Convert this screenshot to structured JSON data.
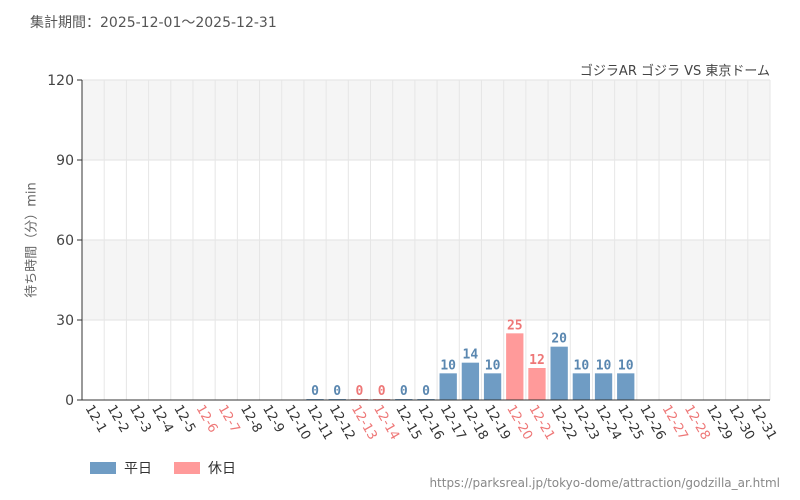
{
  "period_label": "集計期間：2025-12-01～2025-12-31",
  "attraction": "ゴジラAR ゴジラ VS 東京ドーム",
  "source_url": "https://parksreal.jp/tokyo-dome/attraction/godzilla_ar.html",
  "colors": {
    "weekday": "#6f9cc4",
    "holiday": "#ff9a9a",
    "holiday_text": "#ee7777",
    "weekday_text": "#5a87b0"
  },
  "chart_data": {
    "type": "bar",
    "ylabel": "待ち時間（分）min",
    "ylim": [
      0,
      120
    ],
    "yticks": [
      "0",
      "30",
      "60",
      "90",
      "120"
    ],
    "categories": [
      "12-1",
      "12-2",
      "12-3",
      "12-4",
      "12-5",
      "12-6",
      "12-7",
      "12-8",
      "12-9",
      "12-10",
      "12-11",
      "12-12",
      "12-13",
      "12-14",
      "12-15",
      "12-16",
      "12-17",
      "12-18",
      "12-19",
      "12-20",
      "12-21",
      "12-22",
      "12-23",
      "12-24",
      "12-25",
      "12-26",
      "12-27",
      "12-28",
      "12-29",
      "12-30",
      "12-31"
    ],
    "holiday": [
      false,
      false,
      false,
      false,
      false,
      true,
      true,
      false,
      false,
      false,
      false,
      false,
      true,
      true,
      false,
      false,
      false,
      false,
      false,
      true,
      true,
      false,
      false,
      false,
      false,
      false,
      true,
      true,
      false,
      false,
      false
    ],
    "values": [
      null,
      null,
      null,
      null,
      null,
      null,
      null,
      null,
      null,
      null,
      0,
      0,
      0,
      0,
      0,
      0,
      10,
      14,
      10,
      25,
      12,
      20,
      10,
      10,
      10,
      null,
      null,
      null,
      null,
      null,
      null
    ],
    "legend": [
      "平日",
      "休日"
    ],
    "legend_position": "bottom-left",
    "grid": true
  }
}
